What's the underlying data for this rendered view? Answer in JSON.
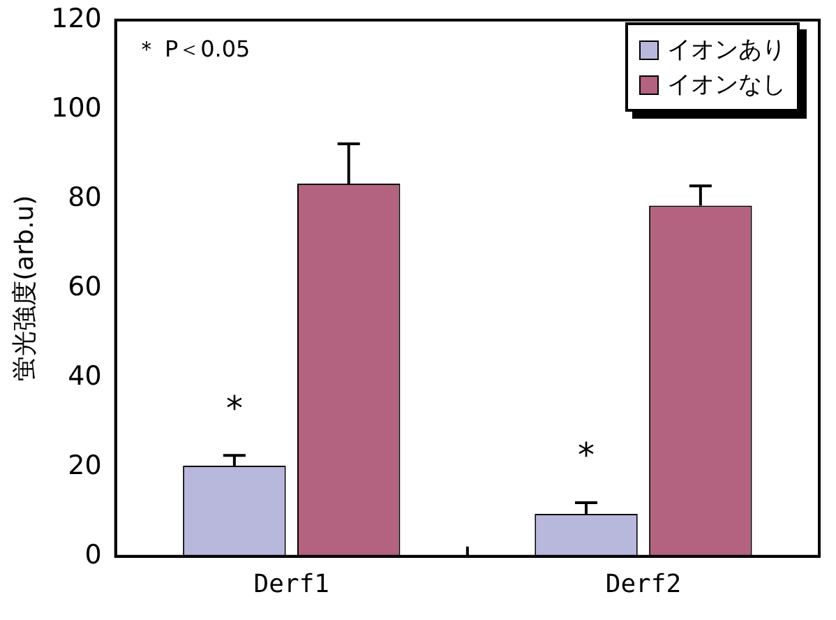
{
  "chart_data": {
    "type": "bar",
    "ylabel": "蛍光強度(arb.u)",
    "categories": [
      "Derf1",
      "Derf2"
    ],
    "series": [
      {
        "name": "イオンあり",
        "color": "#b8b8dc",
        "values": [
          20.3,
          9.5
        ],
        "errors": [
          [
            20.3,
            22.6
          ],
          [
            9.5,
            12
          ]
        ]
      },
      {
        "name": "イオンなし",
        "color": "#b3627f",
        "values": [
          83.4,
          78.5
        ],
        "errors": [
          [
            83.4,
            92.3
          ],
          [
            78.5,
            82.9
          ]
        ]
      }
    ],
    "ylim": [
      0,
      120
    ],
    "yticks": [
      0,
      20,
      40,
      60,
      80,
      100,
      120
    ],
    "grid": false,
    "legend": "top right",
    "annotations": [
      "＊ P＜0.05",
      "*",
      "*"
    ]
  }
}
